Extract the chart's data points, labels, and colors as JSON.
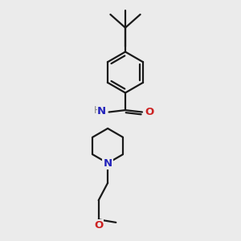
{
  "bg_color": "#ebebeb",
  "bond_color": "#1a1a1a",
  "N_color": "#2222bb",
  "O_color": "#cc2222",
  "H_color": "#888888",
  "line_width": 1.6,
  "figsize": [
    3.0,
    3.0
  ],
  "dpi": 100,
  "xlim": [
    0,
    10
  ],
  "ylim": [
    0,
    10
  ]
}
